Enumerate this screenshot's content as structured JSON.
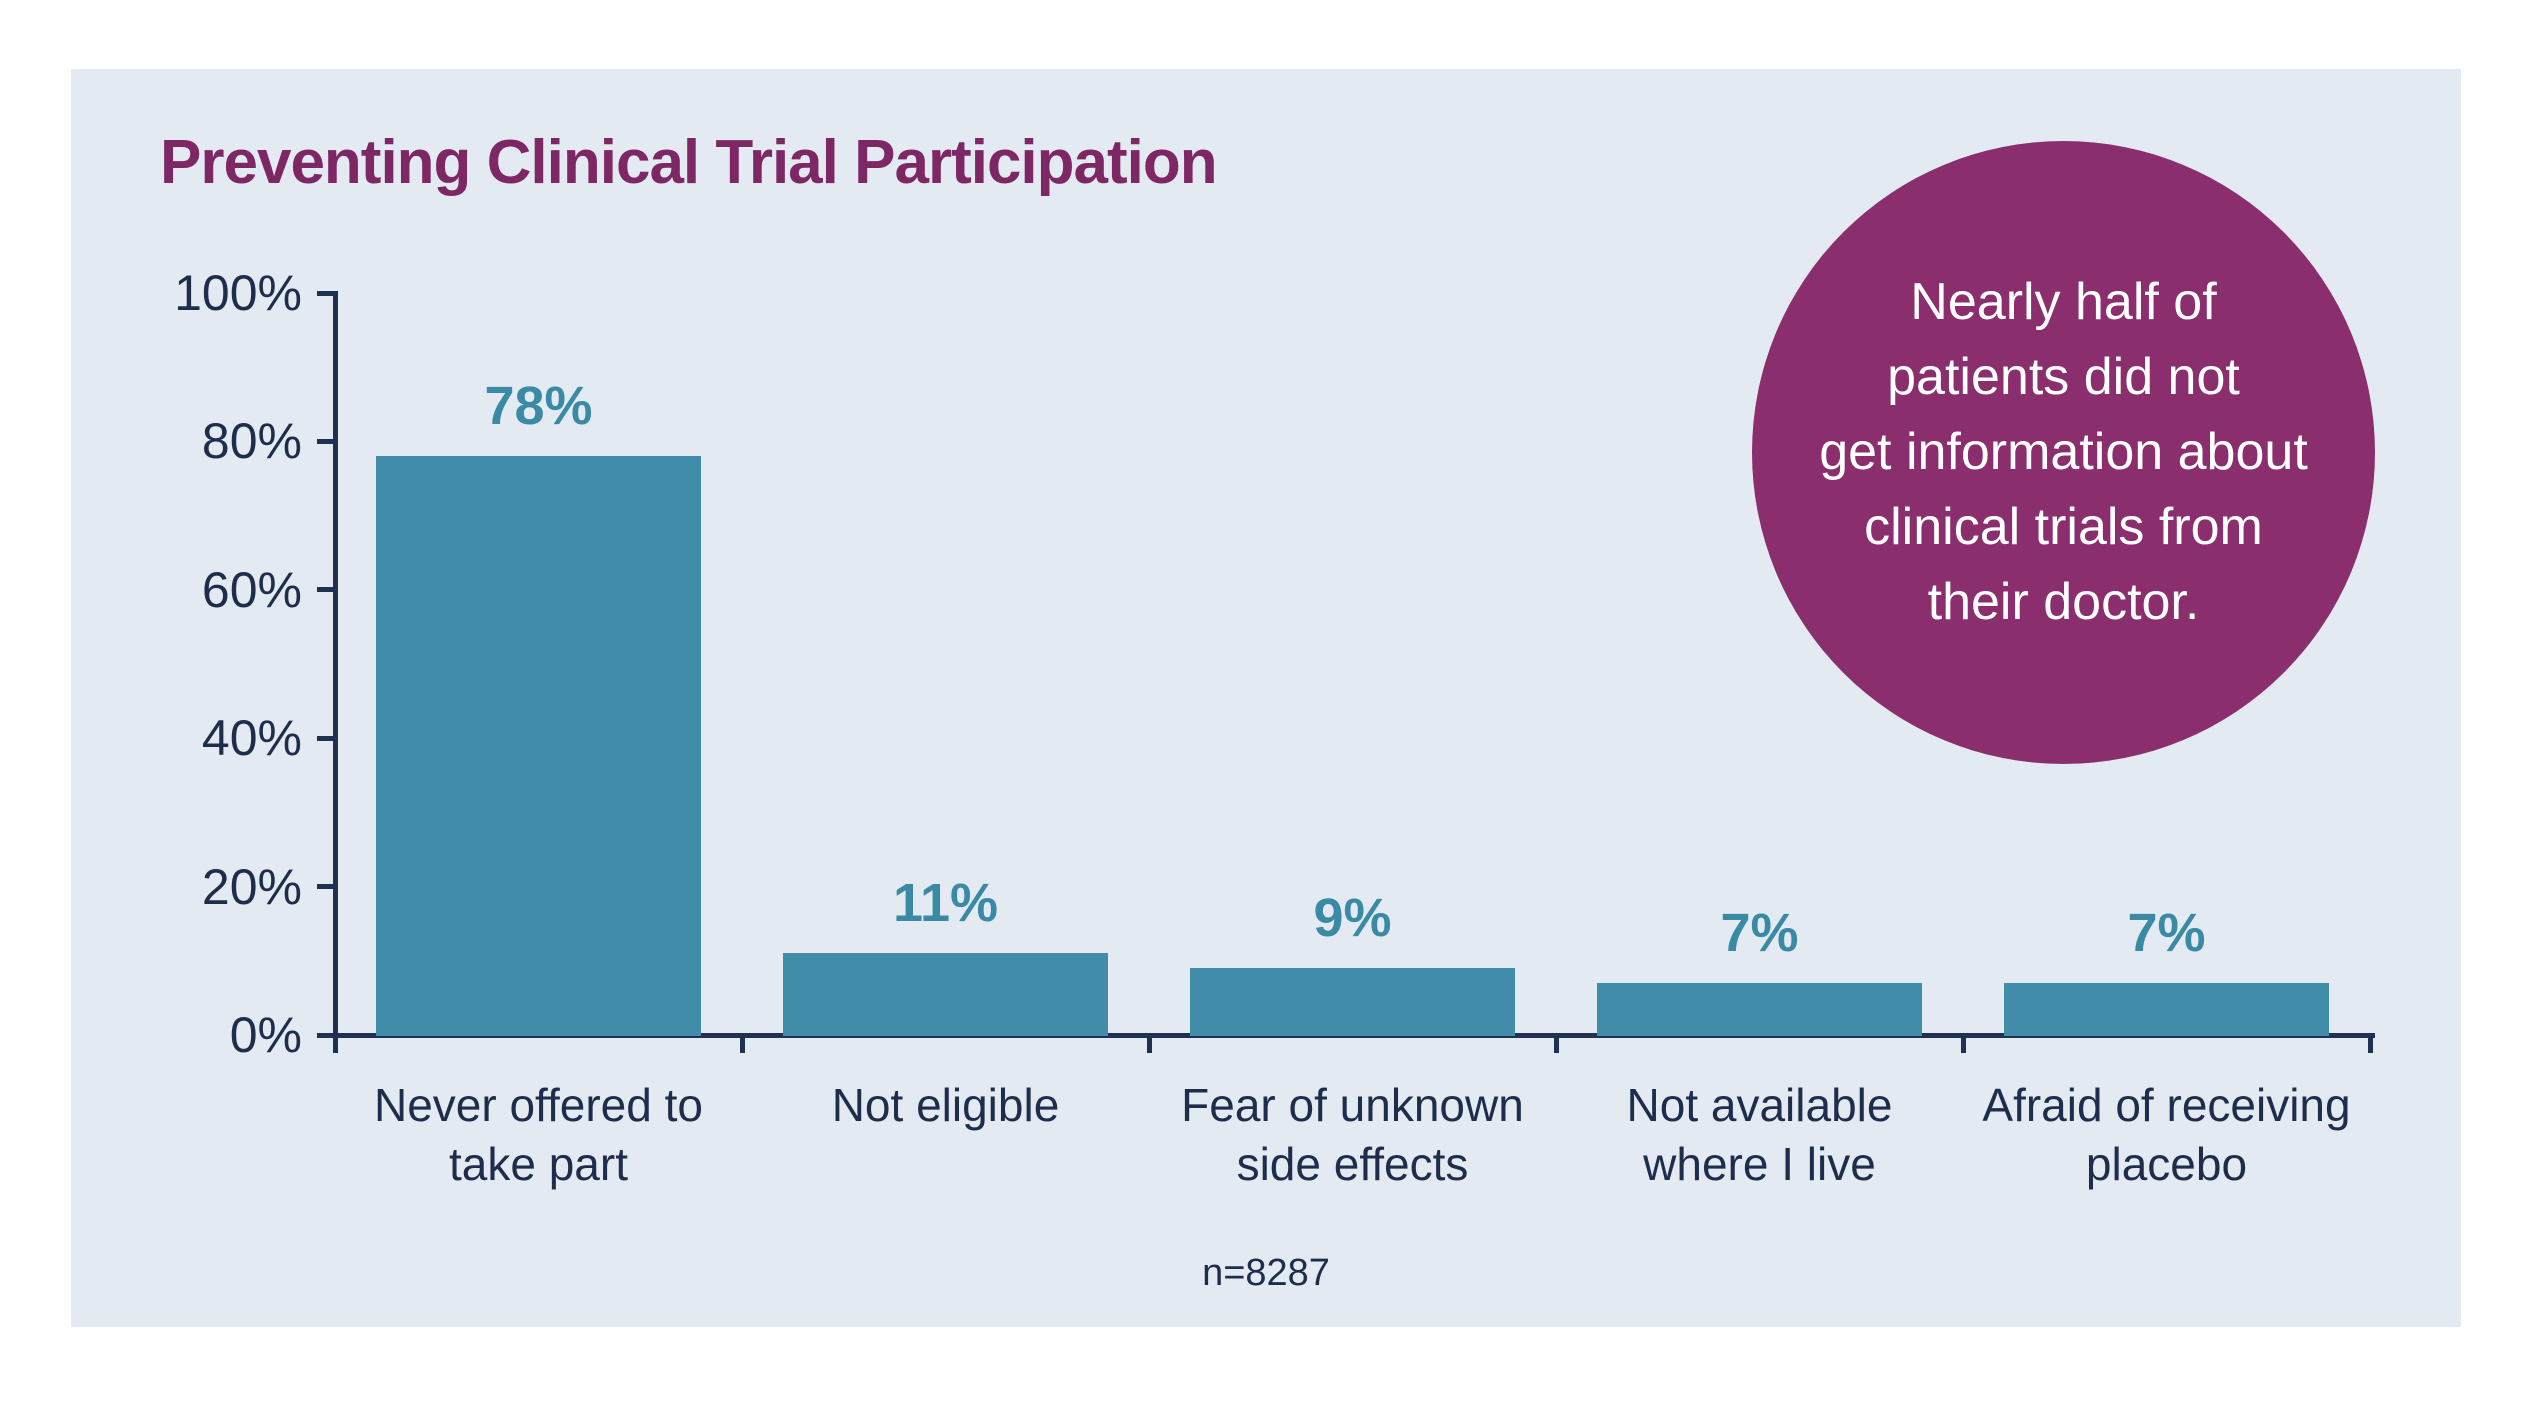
{
  "panel": {
    "background": "#e4eaf1"
  },
  "title": {
    "text": "Preventing Clinical Trial Participation",
    "color": "#7e2765"
  },
  "callout": {
    "text": "Nearly half of\npatients did not\nget information about\nclinical trials from\ntheir doctor.",
    "circle_color": "#8a2e6d",
    "text_color": "#ffffff"
  },
  "footnote": {
    "text": "n=8287"
  },
  "chart_data": {
    "type": "bar",
    "title": "Preventing Clinical Trial Participation",
    "categories": [
      "Never offered to\ntake part",
      "Not eligible",
      "Fear of unknown\nside effects",
      "Not available\nwhere I live",
      "Afraid of receiving\nplacebo"
    ],
    "values": [
      78,
      11,
      9,
      7,
      7
    ],
    "value_labels": [
      "78%",
      "11%",
      "9%",
      "7%",
      "7%"
    ],
    "ylabel": "",
    "xlabel": "",
    "ylim": [
      0,
      100
    ],
    "yticks": [
      0,
      20,
      40,
      60,
      80,
      100
    ],
    "ytick_labels": [
      "0%",
      "20%",
      "40%",
      "60%",
      "80%",
      "100%"
    ],
    "grid": false,
    "legend": false,
    "bar_color": "#418da9",
    "value_label_color": "#3a8aa6",
    "axis_color": "#203050",
    "tick_label_color": "#1e2d4c",
    "sample_note": "n=8287"
  }
}
